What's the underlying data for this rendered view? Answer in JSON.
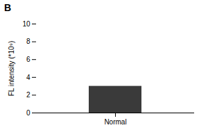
{
  "chart_data": {
    "type": "bar",
    "title": "B",
    "categories": [
      "Normal"
    ],
    "values": [
      3.0
    ],
    "color": "#3a3a3a",
    "ylim": [
      0,
      10
    ],
    "yticks": [
      0,
      2,
      4,
      6,
      8,
      10
    ],
    "ylabel": "FL intensity (*10⁹)"
  }
}
